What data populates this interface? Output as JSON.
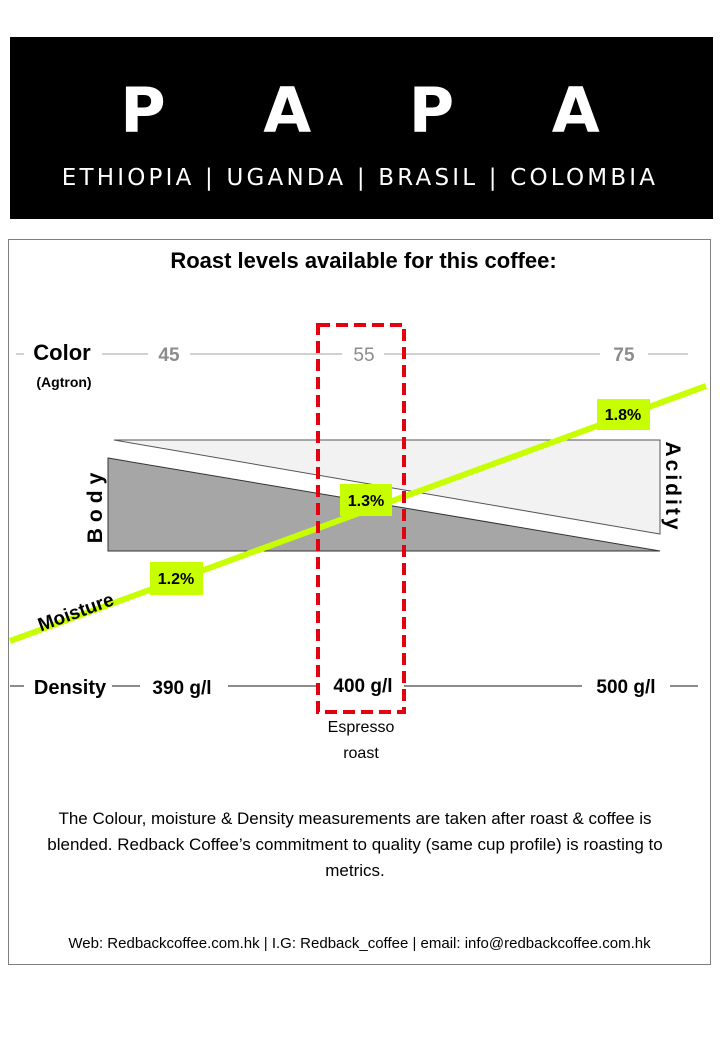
{
  "header": {
    "brand": "P A P A",
    "origins": "ETHIOPIA | UGANDA | BRASIL | COLOMBIA"
  },
  "title": "Roast levels available for this coffee:",
  "color_scale": {
    "label": "Color",
    "sublabel": "(Agtron)",
    "ticks": [
      "45",
      "55",
      "75"
    ]
  },
  "density_scale": {
    "label": "Density",
    "ticks": [
      "390 g/l",
      "400 g/l",
      "500 g/l"
    ]
  },
  "body_label": "Body",
  "acidity_label": "Acidity",
  "moisture": {
    "label": "Moisture",
    "values": [
      "1.2%",
      "1.3%",
      "1.8%"
    ],
    "line_color": "#c8ff00"
  },
  "highlight": {
    "label_line1": "Espresso",
    "label_line2": "roast",
    "color": "#e3000f"
  },
  "note": "The Colour, moisture & Density measurements are taken after roast & coffee is blended.  Redback Coffee’s commitment to quality (same cup profile) is roasting to metrics.",
  "footer": "Web: Redbackcoffee.com.hk  | I.G: Redback_coffee | email: info@redbackcoffee.com.hk"
}
